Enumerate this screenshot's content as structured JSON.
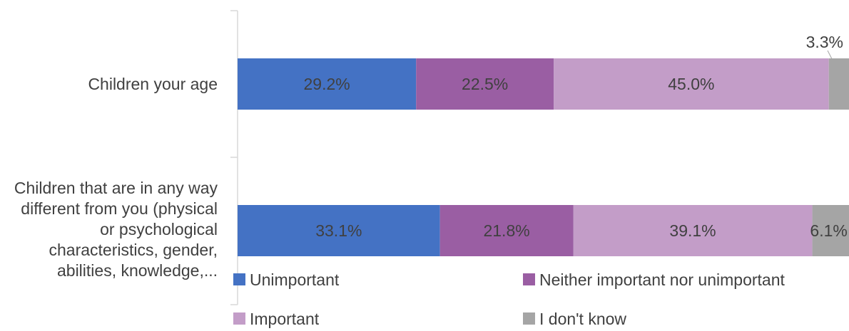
{
  "chart_data": {
    "type": "bar",
    "orientation": "horizontal",
    "stacked": true,
    "percent": true,
    "categories": [
      "Children your age",
      "Children that are in any way different from you (physical or psychological characteristics, gender, abilities, knowledge,..."
    ],
    "series": [
      {
        "name": "Unimportant",
        "values": [
          29.2,
          33.1
        ],
        "color": "#4472c4"
      },
      {
        "name": "Neither important nor unimportant",
        "values": [
          22.5,
          21.8
        ],
        "color": "#9a5ea3"
      },
      {
        "name": "Important",
        "values": [
          45.0,
          39.1
        ],
        "color": "#c39dc8"
      },
      {
        "name": "I don't know",
        "values": [
          3.3,
          6.1
        ],
        "color": "#a5a5a5"
      }
    ],
    "data_labels": [
      [
        "29.2%",
        "22.5%",
        "45.0%",
        "3.3%"
      ],
      [
        "33.1%",
        "21.8%",
        "39.1%",
        "6.1%"
      ]
    ],
    "xlim": [
      0,
      100
    ],
    "title": "",
    "xlabel": "",
    "ylabel": "",
    "grid": false,
    "legend_position": "bottom",
    "label_color": "#404040"
  }
}
